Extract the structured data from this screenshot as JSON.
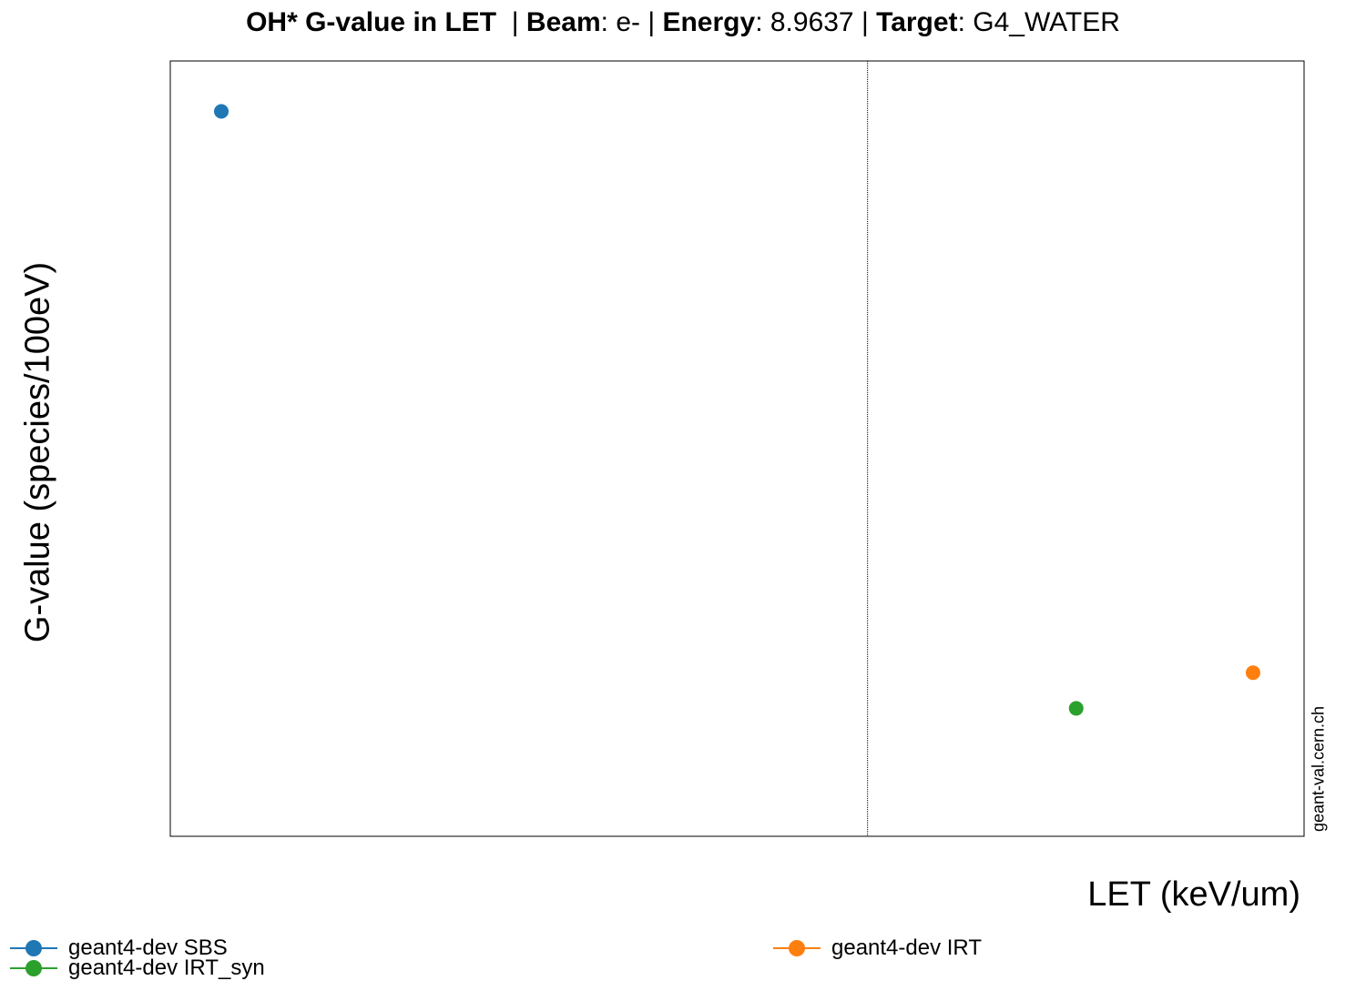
{
  "title": {
    "main": "OH* G-value in LET",
    "beam_label": "Beam",
    "beam": "e-",
    "energy_label": "Energy",
    "energy": "8.9637",
    "target_label": "Target",
    "target": "G4_WATER"
  },
  "watermark": "geant-val.cern.ch",
  "chart_data": {
    "type": "scatter",
    "title": "OH* G-value in LET  | Beam: e- | Energy: 8.9637 | Target: G4_WATER",
    "xlabel": "LET (keV/um)",
    "ylabel": "G-value (species/100eV)",
    "x_ticks_shown": false,
    "y_ticks_shown": false,
    "xlim": [
      0,
      1
    ],
    "ylim": [
      0,
      1
    ],
    "vline_x": 0.615,
    "grid": false,
    "legend_placement": "bottom",
    "series": [
      {
        "name": "geant4-dev SBS",
        "color": "#1f77b4",
        "points": [
          {
            "x": 0.045,
            "y": 0.935
          }
        ]
      },
      {
        "name": "geant4-dev IRT",
        "color": "#ff7f0e",
        "points": [
          {
            "x": 0.955,
            "y": 0.211
          }
        ]
      },
      {
        "name": "geant4-dev IRT_syn",
        "color": "#2ca02c",
        "points": [
          {
            "x": 0.799,
            "y": 0.165
          }
        ]
      }
    ]
  }
}
